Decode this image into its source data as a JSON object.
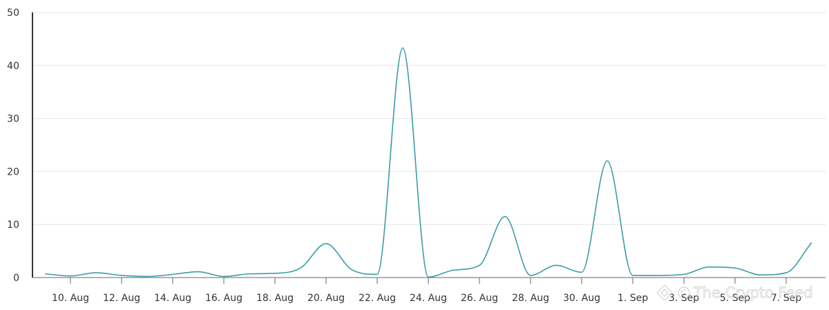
{
  "chart_data": {
    "type": "line",
    "title": "",
    "xlabel": "",
    "ylabel": "",
    "ylim": [
      0,
      50
    ],
    "yticks": [
      0,
      10,
      20,
      30,
      40,
      50
    ],
    "xtick_labels": [
      "10. Aug",
      "12. Aug",
      "14. Aug",
      "16. Aug",
      "18. Aug",
      "20. Aug",
      "22. Aug",
      "24. Aug",
      "26. Aug",
      "28. Aug",
      "30. Aug",
      "1. Sep",
      "3. Sep",
      "5. Sep",
      "7. Sep"
    ],
    "grid": true,
    "legend": "none",
    "series": [
      {
        "color": "#3a9ca8",
        "x": [
          "9. Aug",
          "10. Aug",
          "11. Aug",
          "12. Aug",
          "13. Aug",
          "14. Aug",
          "15. Aug",
          "16. Aug",
          "17. Aug",
          "18. Aug",
          "19. Aug",
          "20. Aug",
          "21. Aug",
          "22. Aug",
          "23. Aug",
          "24. Aug",
          "25. Aug",
          "26. Aug",
          "27. Aug",
          "28. Aug",
          "29. Aug",
          "30. Aug",
          "31. Aug",
          "1. Sep",
          "2. Sep",
          "3. Sep",
          "4. Sep",
          "5. Sep",
          "6. Sep",
          "7. Sep",
          "8. Sep"
        ],
        "values": [
          0.7,
          0.3,
          0.9,
          0.4,
          0.2,
          0.6,
          1.1,
          0.2,
          0.7,
          0.8,
          1.8,
          6.4,
          1.5,
          0.6,
          43.3,
          0.1,
          1.4,
          2.3,
          11.5,
          0.4,
          2.3,
          1.0,
          22.0,
          0.4,
          0.4,
          0.6,
          2.0,
          1.8,
          0.5,
          0.9,
          6.6
        ]
      }
    ]
  },
  "watermark": {
    "text": "The Crypto Feed"
  }
}
